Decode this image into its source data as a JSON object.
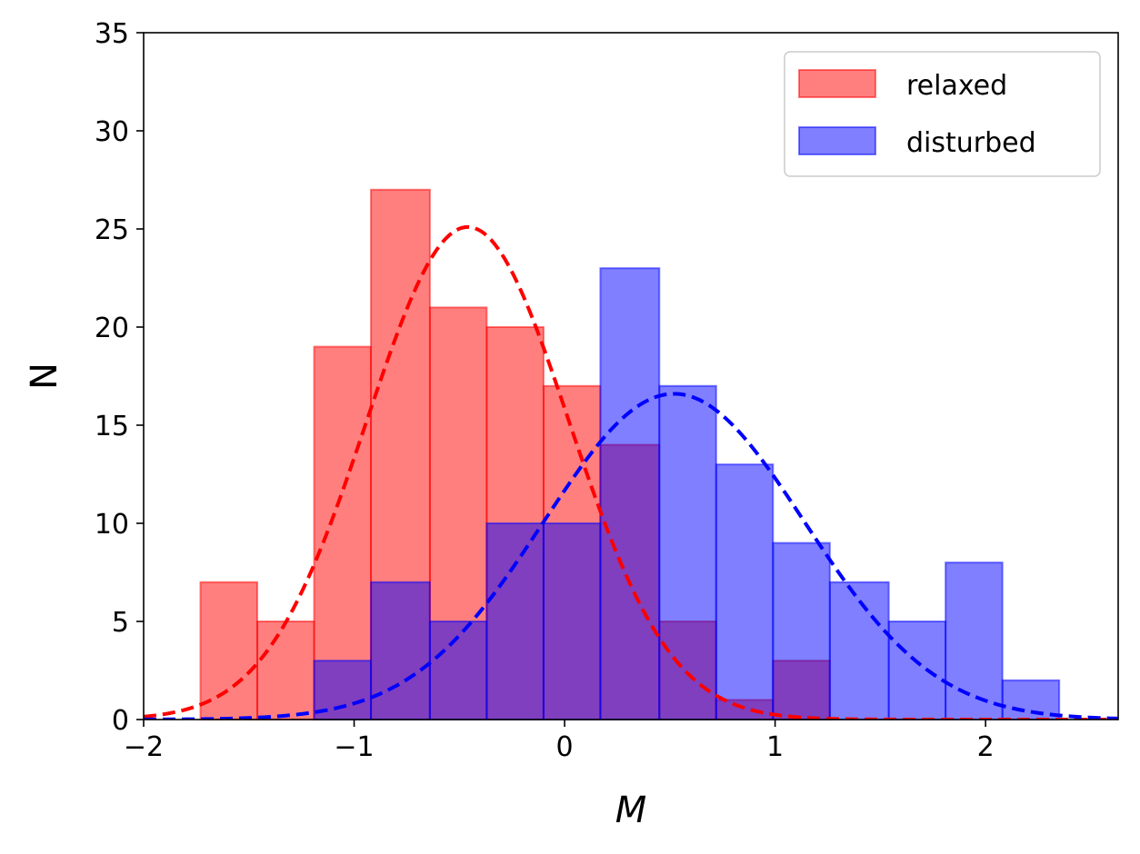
{
  "chart_data": {
    "type": "histogram",
    "xlabel": "M",
    "ylabel": "N",
    "xlim": [
      -2,
      2.63
    ],
    "ylim": [
      0,
      35
    ],
    "xticks": [
      -2,
      -1,
      0,
      1,
      2
    ],
    "xtick_labels": [
      "−2",
      "−1",
      "0",
      "1",
      "2"
    ],
    "yticks": [
      0,
      5,
      10,
      15,
      20,
      25,
      30,
      35
    ],
    "ytick_labels": [
      "0",
      "5",
      "10",
      "15",
      "20",
      "25",
      "30",
      "35"
    ],
    "grid": false,
    "legend_position": "top-right",
    "series": [
      {
        "name": "relaxed",
        "color": "#ff0000",
        "bin_edges": [
          -1.73,
          -1.46,
          -1.19,
          -0.92,
          -0.64,
          -0.37,
          -0.1,
          0.17,
          0.45,
          0.72,
          0.99,
          1.26
        ],
        "counts": [
          7,
          5,
          19,
          27,
          21,
          20,
          17,
          14,
          5,
          1,
          3
        ],
        "fit": {
          "kind": "gaussian",
          "mean": -0.46,
          "sigma": 0.48,
          "peak": 25.1
        }
      },
      {
        "name": "disturbed",
        "color": "#0000ff",
        "bin_edges": [
          -1.19,
          -0.92,
          -0.64,
          -0.37,
          -0.1,
          0.17,
          0.45,
          0.72,
          0.99,
          1.26,
          1.54,
          1.81,
          2.08,
          2.35
        ],
        "counts": [
          3,
          7,
          5,
          10,
          10,
          23,
          17,
          13,
          9,
          7,
          5,
          8,
          2
        ],
        "fit": {
          "kind": "gaussian",
          "mean": 0.52,
          "sigma": 0.62,
          "peak": 16.6
        }
      }
    ]
  }
}
